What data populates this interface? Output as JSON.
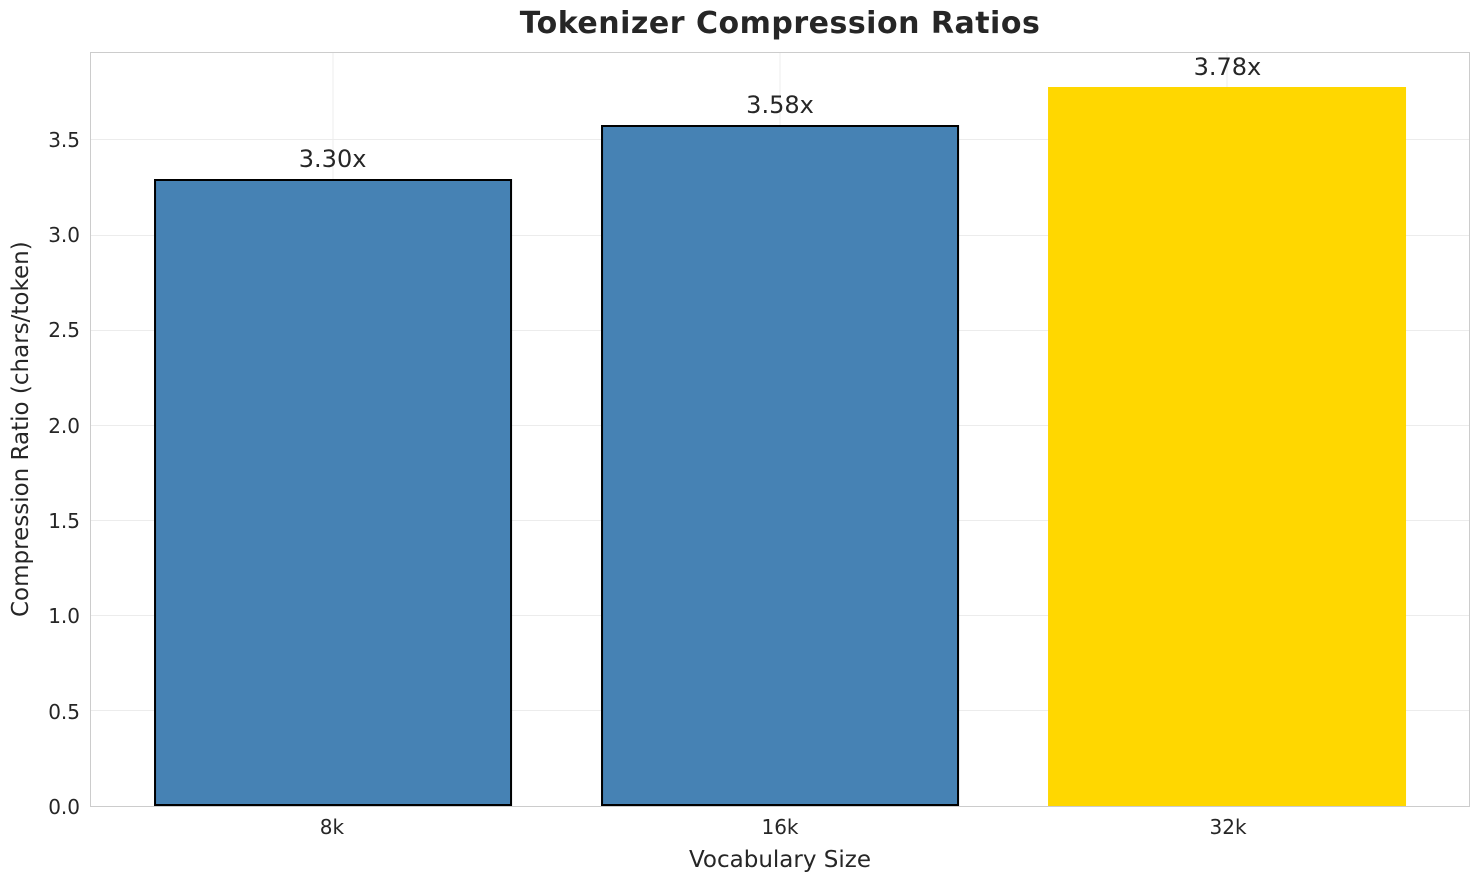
{
  "chart_data": {
    "type": "bar",
    "title": "Tokenizer Compression Ratios",
    "xlabel": "Vocabulary Size",
    "ylabel": "Compression Ratio (chars/token)",
    "categories": [
      "8k",
      "16k",
      "32k"
    ],
    "values": [
      3.3,
      3.58,
      3.78
    ],
    "value_labels": [
      "3.30x",
      "3.58x",
      "3.78x"
    ],
    "bar_colors": [
      "#4682B4",
      "#4682B4",
      "#FFD700"
    ],
    "bar_edge_colors": [
      "#000000",
      "#000000",
      "none"
    ],
    "bar_edge_width": 2,
    "bar_width": 0.8,
    "xlim": [
      -0.54,
      2.54
    ],
    "ylim": [
      0,
      3.96
    ],
    "yticks": [
      0.0,
      0.5,
      1.0,
      1.5,
      2.0,
      2.5,
      3.0,
      3.5
    ],
    "ytick_labels": [
      "0.0",
      "0.5",
      "1.0",
      "1.5",
      "2.0",
      "2.5",
      "3.0",
      "3.5"
    ],
    "grid": true,
    "grid_axes": "both",
    "legend": null,
    "colors": {
      "text": "#262626",
      "spine": "#cccccc",
      "grid": "#ececec",
      "background": "#ffffff"
    }
  }
}
